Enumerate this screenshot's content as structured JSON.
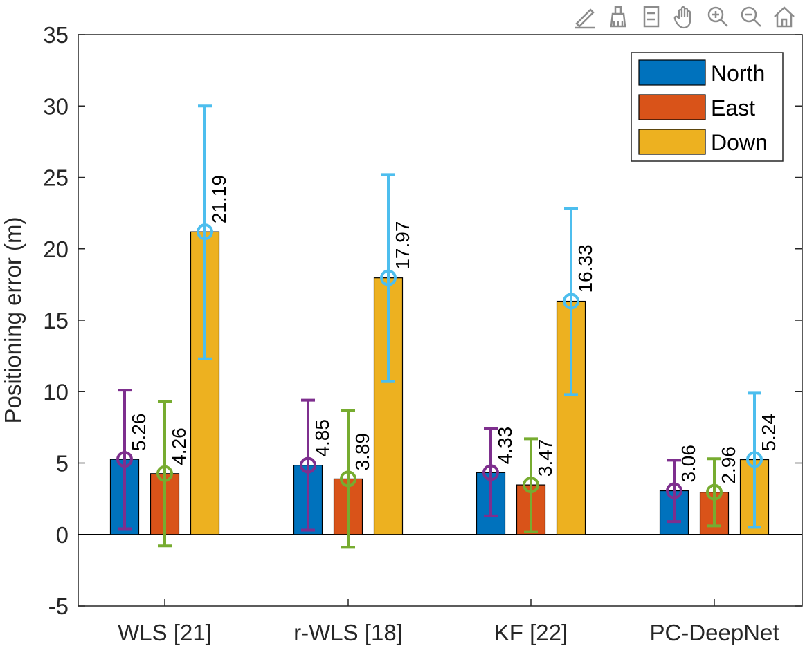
{
  "toolbar": {
    "icons": [
      "edit-icon",
      "brush-icon",
      "legend-icon",
      "pan-hand-icon",
      "zoom-in-icon",
      "zoom-out-icon",
      "home-icon"
    ]
  },
  "chart_data": {
    "type": "bar",
    "title": "",
    "xlabel": "",
    "ylabel": "Positioning error (m)",
    "ylim": [
      -5,
      35
    ],
    "yticks": [
      -5,
      0,
      5,
      10,
      15,
      20,
      25,
      30,
      35
    ],
    "ytick_labels": [
      "-5",
      "0",
      "5",
      "10",
      "15",
      "20",
      "25",
      "30",
      "35"
    ],
    "categories": [
      "WLS [21]",
      "r-WLS [18]",
      "KF [22]",
      "PC-DeepNet"
    ],
    "legend_position": "top-right",
    "series": [
      {
        "name": "North",
        "color": "#0072BD",
        "error_color": "#7E2F8E",
        "values": [
          5.26,
          4.85,
          4.33,
          3.06
        ],
        "value_labels": [
          "5.26",
          "4.85",
          "4.33",
          "3.06"
        ],
        "error_low": [
          0.4,
          0.3,
          1.3,
          0.9
        ],
        "error_high": [
          10.1,
          9.4,
          7.4,
          5.2
        ]
      },
      {
        "name": "East",
        "color": "#D95319",
        "error_color": "#77AC30",
        "values": [
          4.26,
          3.89,
          3.47,
          2.96
        ],
        "value_labels": [
          "4.26",
          "3.89",
          "3.47",
          "2.96"
        ],
        "error_low": [
          -0.8,
          -0.9,
          0.2,
          0.6
        ],
        "error_high": [
          9.3,
          8.7,
          6.7,
          5.3
        ]
      },
      {
        "name": "Down",
        "color": "#EDB120",
        "error_color": "#4DBEEE",
        "values": [
          21.19,
          17.97,
          16.33,
          5.24
        ],
        "value_labels": [
          "21.19",
          "17.97",
          "16.33",
          "5.24"
        ],
        "error_low": [
          12.3,
          10.7,
          9.8,
          0.5
        ],
        "error_high": [
          30.0,
          25.2,
          22.8,
          9.9
        ]
      }
    ]
  }
}
